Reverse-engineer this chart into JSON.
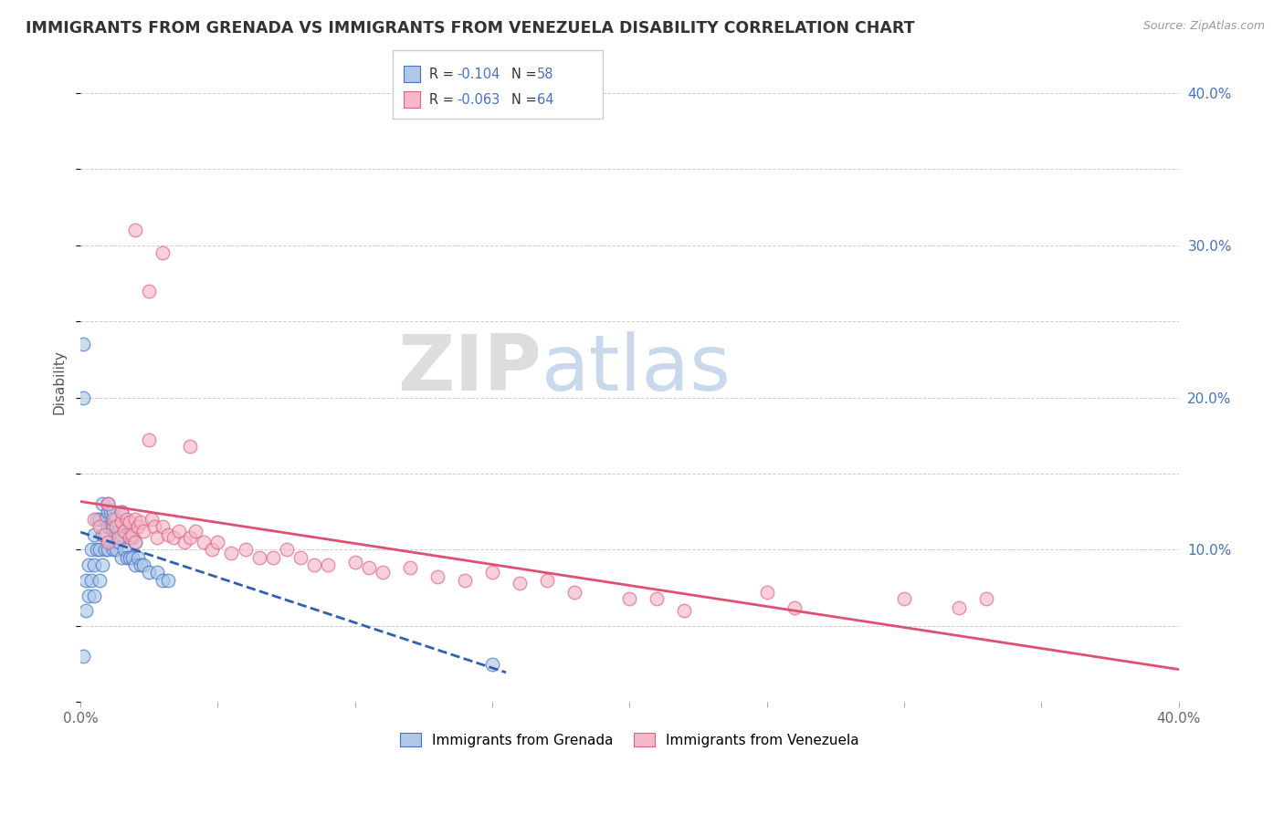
{
  "title": "IMMIGRANTS FROM GRENADA VS IMMIGRANTS FROM VENEZUELA DISABILITY CORRELATION CHART",
  "source": "Source: ZipAtlas.com",
  "ylabel": "Disability",
  "xlim": [
    0.0,
    0.4
  ],
  "ylim": [
    0.0,
    0.42
  ],
  "watermark_zip": "ZIP",
  "watermark_atlas": "atlas",
  "legend_r1": "-0.104",
  "legend_n1": "58",
  "legend_r2": "-0.063",
  "legend_n2": "64",
  "color_blue_fill": "#aec8e8",
  "color_blue_edge": "#4472c4",
  "color_pink_fill": "#f4b8c8",
  "color_pink_edge": "#e06080",
  "color_blue_line": "#3060b0",
  "color_pink_line": "#e05070",
  "text_blue": "#4472c4",
  "background_color": "#ffffff",
  "grenada_x": [
    0.001,
    0.002,
    0.002,
    0.003,
    0.003,
    0.004,
    0.004,
    0.005,
    0.005,
    0.005,
    0.006,
    0.006,
    0.007,
    0.007,
    0.007,
    0.008,
    0.008,
    0.008,
    0.009,
    0.009,
    0.01,
    0.01,
    0.01,
    0.01,
    0.011,
    0.011,
    0.011,
    0.012,
    0.012,
    0.012,
    0.013,
    0.013,
    0.013,
    0.014,
    0.014,
    0.015,
    0.015,
    0.015,
    0.016,
    0.016,
    0.017,
    0.017,
    0.018,
    0.018,
    0.019,
    0.019,
    0.02,
    0.02,
    0.021,
    0.022,
    0.023,
    0.025,
    0.028,
    0.03,
    0.032,
    0.001,
    0.001,
    0.15
  ],
  "grenada_y": [
    0.03,
    0.06,
    0.08,
    0.07,
    0.09,
    0.08,
    0.1,
    0.07,
    0.09,
    0.11,
    0.1,
    0.12,
    0.08,
    0.1,
    0.12,
    0.09,
    0.11,
    0.13,
    0.1,
    0.12,
    0.1,
    0.115,
    0.125,
    0.13,
    0.105,
    0.115,
    0.125,
    0.1,
    0.115,
    0.125,
    0.1,
    0.11,
    0.12,
    0.105,
    0.115,
    0.095,
    0.11,
    0.125,
    0.1,
    0.115,
    0.095,
    0.11,
    0.095,
    0.11,
    0.095,
    0.108,
    0.09,
    0.105,
    0.095,
    0.09,
    0.09,
    0.085,
    0.085,
    0.08,
    0.08,
    0.235,
    0.2,
    0.025
  ],
  "venezuela_x": [
    0.005,
    0.007,
    0.009,
    0.01,
    0.01,
    0.012,
    0.013,
    0.014,
    0.015,
    0.015,
    0.016,
    0.017,
    0.018,
    0.018,
    0.019,
    0.02,
    0.02,
    0.021,
    0.022,
    0.023,
    0.025,
    0.026,
    0.027,
    0.028,
    0.03,
    0.032,
    0.034,
    0.036,
    0.038,
    0.04,
    0.042,
    0.045,
    0.048,
    0.05,
    0.055,
    0.06,
    0.065,
    0.07,
    0.075,
    0.08,
    0.085,
    0.09,
    0.1,
    0.105,
    0.11,
    0.12,
    0.13,
    0.14,
    0.15,
    0.16,
    0.17,
    0.18,
    0.2,
    0.21,
    0.22,
    0.25,
    0.26,
    0.3,
    0.32,
    0.33,
    0.02,
    0.03,
    0.025,
    0.04
  ],
  "venezuela_y": [
    0.12,
    0.115,
    0.11,
    0.13,
    0.105,
    0.12,
    0.115,
    0.108,
    0.118,
    0.125,
    0.112,
    0.12,
    0.108,
    0.118,
    0.11,
    0.12,
    0.105,
    0.115,
    0.118,
    0.112,
    0.172,
    0.12,
    0.115,
    0.108,
    0.115,
    0.11,
    0.108,
    0.112,
    0.105,
    0.108,
    0.112,
    0.105,
    0.1,
    0.105,
    0.098,
    0.1,
    0.095,
    0.095,
    0.1,
    0.095,
    0.09,
    0.09,
    0.092,
    0.088,
    0.085,
    0.088,
    0.082,
    0.08,
    0.085,
    0.078,
    0.08,
    0.072,
    0.068,
    0.068,
    0.06,
    0.072,
    0.062,
    0.068,
    0.062,
    0.068,
    0.31,
    0.295,
    0.27,
    0.168
  ]
}
